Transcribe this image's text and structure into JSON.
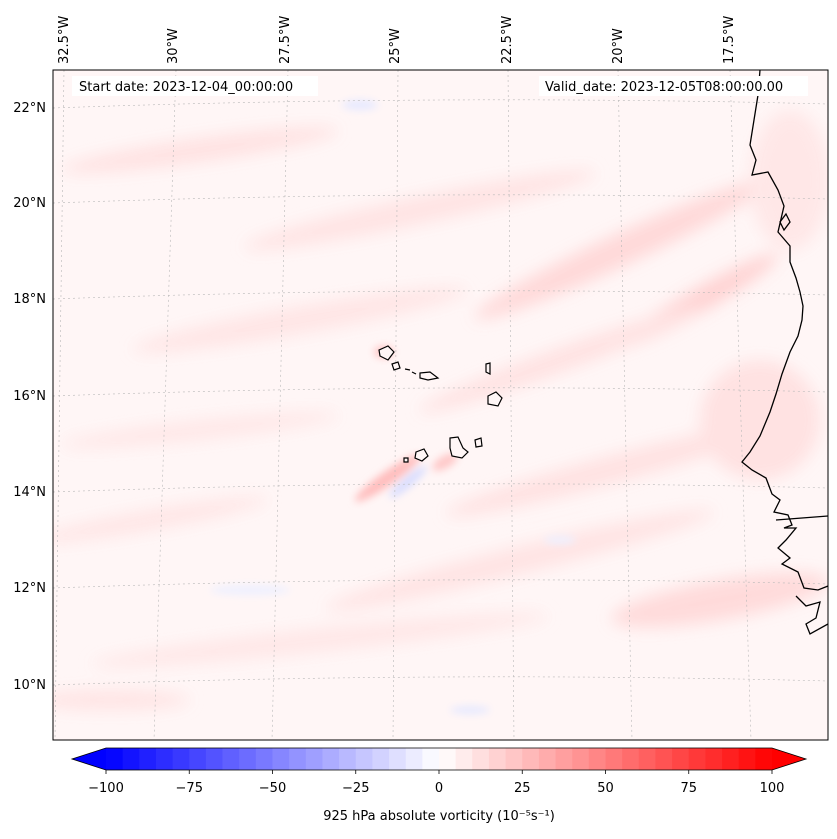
{
  "map": {
    "start_label": "Start date: 2023-12-04_00:00:00",
    "valid_label": "Valid_date: 2023-12-05T08:00:00.00",
    "lon_labels": [
      "32.5°W",
      "30°W",
      "27.5°W",
      "25°W",
      "22.5°W",
      "20°W",
      "17.5°W"
    ],
    "lat_labels": [
      "22°N",
      "20°N",
      "18°N",
      "16°N",
      "14°N",
      "12°N",
      "10°N"
    ],
    "colors": {
      "negative_max": "#0000ff",
      "zero": "#ffffff",
      "positive_max": "#ff0000",
      "background_tint": "#fff5f5",
      "coast": "#000000",
      "grid": "#b0b0b0"
    }
  },
  "colorbar": {
    "label": "925 hPa absolute vorticity (10⁻⁵s⁻¹)",
    "min": -100,
    "max": 100,
    "levels": 41,
    "ticks": [
      "−100",
      "−75",
      "−50",
      "−25",
      "0",
      "25",
      "50",
      "75",
      "100"
    ],
    "extend": "both"
  }
}
